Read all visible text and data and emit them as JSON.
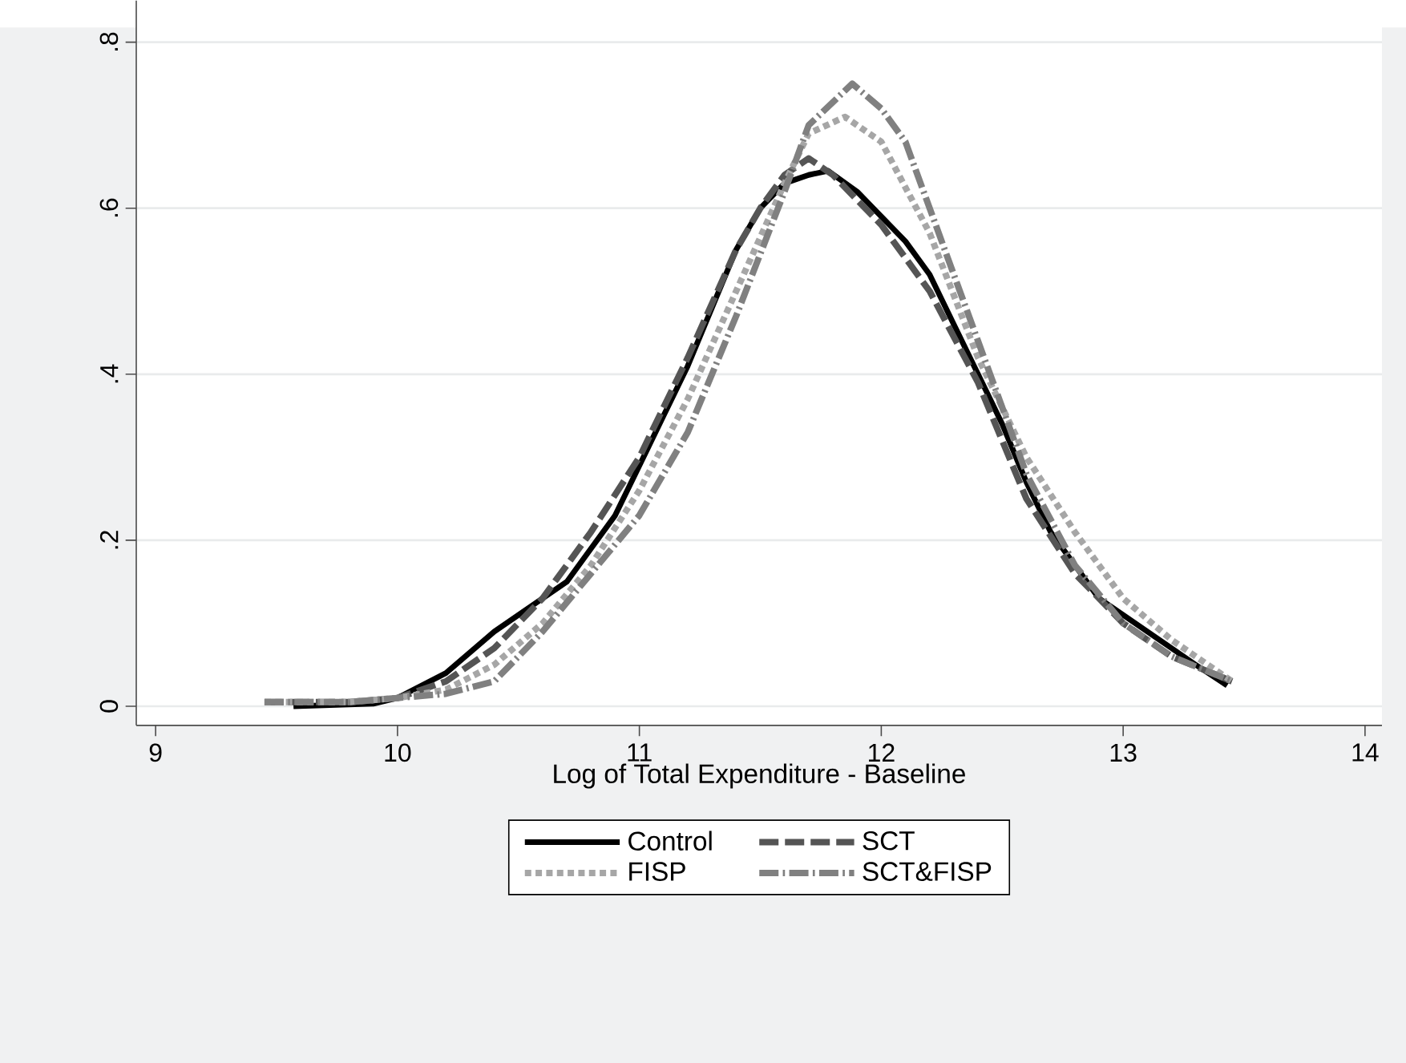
{
  "chart_data": {
    "type": "line",
    "xlabel": "Log of Total Expenditure - Baseline",
    "xlim": [
      8.92,
      14.07
    ],
    "ylim": [
      -0.023,
      0.85
    ],
    "xticks": [
      9,
      10,
      11,
      12,
      13,
      14
    ],
    "yticks": [
      0,
      {
        "value": 0.2,
        "label": ".2"
      },
      {
        "value": 0.4,
        "label": ".4"
      },
      {
        "value": 0.6,
        "label": ".6"
      },
      {
        "value": 0.8,
        "label": ".8"
      }
    ],
    "grid": "y",
    "legend": "bottom",
    "marker": "none",
    "series": [
      {
        "name": "Control",
        "color": "#000000",
        "line_style": "solid",
        "x": [
          9.57,
          9.9,
          10.0,
          10.2,
          10.4,
          10.5,
          10.6,
          10.7,
          10.8,
          10.9,
          11.0,
          11.1,
          11.2,
          11.3,
          11.4,
          11.5,
          11.6,
          11.7,
          11.78,
          11.9,
          12.0,
          12.1,
          12.2,
          12.3,
          12.4,
          12.5,
          12.6,
          12.7,
          12.8,
          12.9,
          13.0,
          13.1,
          13.2,
          13.3,
          13.43
        ],
        "values": [
          0.0,
          0.003,
          0.01,
          0.04,
          0.09,
          0.11,
          0.13,
          0.15,
          0.19,
          0.23,
          0.29,
          0.35,
          0.41,
          0.48,
          0.55,
          0.6,
          0.63,
          0.64,
          0.645,
          0.62,
          0.59,
          0.56,
          0.52,
          0.46,
          0.4,
          0.34,
          0.27,
          0.21,
          0.17,
          0.13,
          0.11,
          0.09,
          0.07,
          0.05,
          0.025
        ]
      },
      {
        "name": "SCT",
        "color": "#555555",
        "line_style": "dashed",
        "x": [
          9.45,
          9.8,
          10.0,
          10.2,
          10.4,
          10.6,
          10.8,
          11.0,
          11.2,
          11.4,
          11.5,
          11.6,
          11.7,
          11.8,
          11.9,
          12.0,
          12.2,
          12.4,
          12.6,
          12.8,
          13.0,
          13.2,
          13.45
        ],
        "values": [
          0.005,
          0.005,
          0.01,
          0.03,
          0.07,
          0.13,
          0.21,
          0.3,
          0.42,
          0.55,
          0.6,
          0.64,
          0.66,
          0.64,
          0.61,
          0.58,
          0.5,
          0.39,
          0.25,
          0.16,
          0.1,
          0.06,
          0.03
        ]
      },
      {
        "name": "FISP",
        "color": "#a6a6a6",
        "line_style": "dotted",
        "x": [
          9.45,
          9.8,
          10.0,
          10.2,
          10.4,
          10.6,
          10.8,
          11.0,
          11.2,
          11.4,
          11.6,
          11.7,
          11.85,
          12.0,
          12.2,
          12.4,
          12.6,
          12.8,
          13.0,
          13.2,
          13.45
        ],
        "values": [
          0.005,
          0.005,
          0.01,
          0.02,
          0.05,
          0.1,
          0.17,
          0.26,
          0.37,
          0.5,
          0.63,
          0.69,
          0.71,
          0.68,
          0.57,
          0.42,
          0.3,
          0.21,
          0.13,
          0.08,
          0.03
        ]
      },
      {
        "name": "SCT&FISP",
        "color": "#808080",
        "line_style": "dashdot",
        "x": [
          9.45,
          9.8,
          10.0,
          10.2,
          10.4,
          10.6,
          10.8,
          11.0,
          11.2,
          11.4,
          11.6,
          11.7,
          11.88,
          12.0,
          12.1,
          12.2,
          12.4,
          12.6,
          12.8,
          13.0,
          13.2,
          13.45
        ],
        "values": [
          0.005,
          0.005,
          0.01,
          0.015,
          0.03,
          0.09,
          0.16,
          0.23,
          0.33,
          0.47,
          0.62,
          0.7,
          0.75,
          0.72,
          0.68,
          0.6,
          0.44,
          0.28,
          0.17,
          0.1,
          0.06,
          0.03
        ]
      }
    ]
  }
}
